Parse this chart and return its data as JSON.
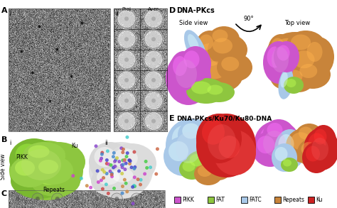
{
  "bg_color": "#ffffff",
  "text_color": "#111111",
  "panel_A_label": "A",
  "panel_B_label": "B",
  "panel_C_label": "C",
  "panel_D_label": "D",
  "panel_E_label": "E",
  "sub_i": "i",
  "sub_ii": "ii",
  "proj_label": "Proj",
  "aver_label": "Aver",
  "dna_pkcs_label": "DNA-PKcs",
  "dna_pkcs_ku_label": "DNA-PKcs/Ku70/Ku80-DNA",
  "side_view_label": "Side view",
  "top_view_label": "Top view",
  "angle_label": "90°",
  "side_view_B": "Side view",
  "pikk_label": "PIKK",
  "ku_label": "Ku",
  "repeats_label": "Repeats",
  "legend_items": [
    "PIKK",
    "FAT",
    "FATC",
    "Repeats",
    "Ku"
  ],
  "legend_colors": [
    "#cc55cc",
    "#8ec63f",
    "#a8c8e8",
    "#c8843a",
    "#cc2222"
  ],
  "color_pikk": "#cc55cc",
  "color_fat": "#8ec63f",
  "color_fatc": "#a8c8e8",
  "color_repeats": "#c8843a",
  "color_ku": "#cc2222",
  "color_green_blob": "#8dc63f",
  "color_white_blob": "#e8e8e8"
}
